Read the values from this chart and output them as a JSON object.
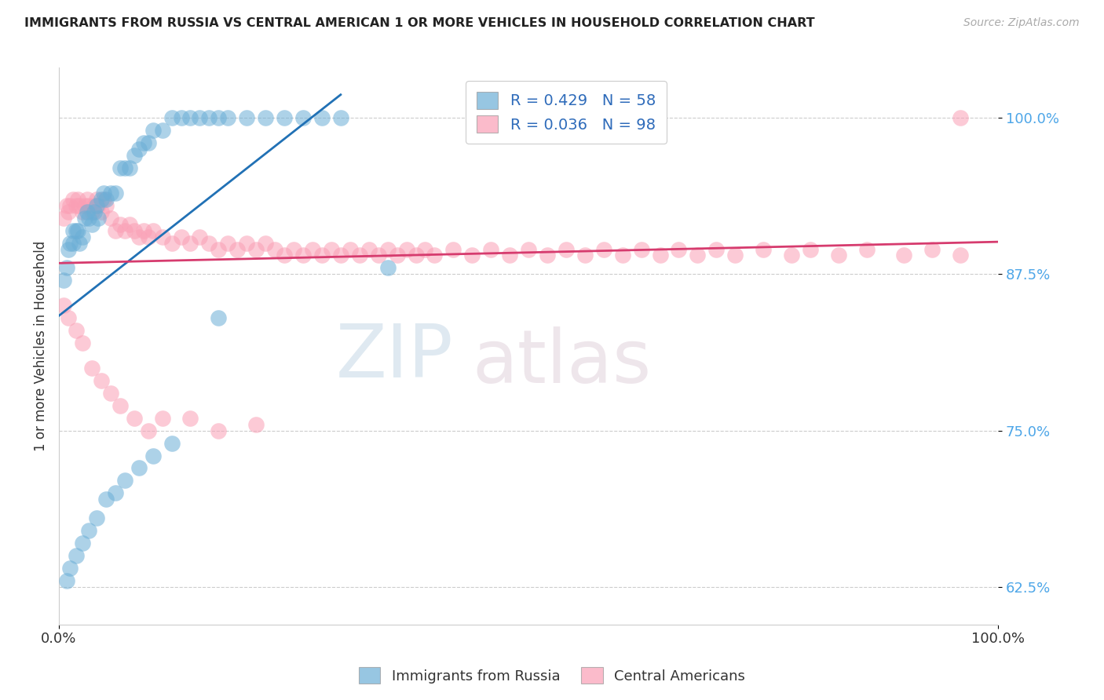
{
  "title": "IMMIGRANTS FROM RUSSIA VS CENTRAL AMERICAN 1 OR MORE VEHICLES IN HOUSEHOLD CORRELATION CHART",
  "source": "Source: ZipAtlas.com",
  "ylabel": "1 or more Vehicles in Household",
  "xlim": [
    0.0,
    1.0
  ],
  "ylim": [
    0.595,
    1.04
  ],
  "yticks": [
    0.625,
    0.75,
    0.875,
    1.0
  ],
  "ytick_labels": [
    "62.5%",
    "75.0%",
    "87.5%",
    "100.0%"
  ],
  "xticks": [
    0.0,
    1.0
  ],
  "xtick_labels": [
    "0.0%",
    "100.0%"
  ],
  "russia_color": "#6baed6",
  "central_color": "#fa9fb5",
  "russia_R": 0.429,
  "russia_N": 58,
  "central_R": 0.036,
  "central_N": 98,
  "legend_labels": [
    "Immigrants from Russia",
    "Central Americans"
  ],
  "russia_line_color": "#2171b5",
  "central_line_color": "#d63b6e",
  "russia_x": [
    0.005,
    0.008,
    0.01,
    0.012,
    0.015,
    0.015,
    0.018,
    0.02,
    0.022,
    0.025,
    0.028,
    0.03,
    0.032,
    0.035,
    0.038,
    0.04,
    0.042,
    0.045,
    0.048,
    0.05,
    0.055,
    0.06,
    0.065,
    0.07,
    0.075,
    0.08,
    0.085,
    0.09,
    0.095,
    0.1,
    0.11,
    0.12,
    0.13,
    0.14,
    0.15,
    0.16,
    0.17,
    0.18,
    0.2,
    0.22,
    0.24,
    0.26,
    0.28,
    0.3,
    0.008,
    0.012,
    0.018,
    0.025,
    0.032,
    0.04,
    0.05,
    0.06,
    0.07,
    0.085,
    0.1,
    0.12,
    0.17,
    0.35
  ],
  "russia_y": [
    0.87,
    0.88,
    0.895,
    0.9,
    0.9,
    0.91,
    0.91,
    0.91,
    0.9,
    0.905,
    0.92,
    0.925,
    0.92,
    0.915,
    0.925,
    0.93,
    0.92,
    0.935,
    0.94,
    0.935,
    0.94,
    0.94,
    0.96,
    0.96,
    0.96,
    0.97,
    0.975,
    0.98,
    0.98,
    0.99,
    0.99,
    1.0,
    1.0,
    1.0,
    1.0,
    1.0,
    1.0,
    1.0,
    1.0,
    1.0,
    1.0,
    1.0,
    1.0,
    1.0,
    0.63,
    0.64,
    0.65,
    0.66,
    0.67,
    0.68,
    0.695,
    0.7,
    0.71,
    0.72,
    0.73,
    0.74,
    0.84,
    0.88
  ],
  "central_x": [
    0.005,
    0.008,
    0.01,
    0.012,
    0.015,
    0.018,
    0.02,
    0.022,
    0.025,
    0.028,
    0.03,
    0.032,
    0.035,
    0.038,
    0.04,
    0.042,
    0.045,
    0.048,
    0.05,
    0.055,
    0.06,
    0.065,
    0.07,
    0.075,
    0.08,
    0.085,
    0.09,
    0.095,
    0.1,
    0.11,
    0.12,
    0.13,
    0.14,
    0.15,
    0.16,
    0.17,
    0.18,
    0.19,
    0.2,
    0.21,
    0.22,
    0.23,
    0.24,
    0.25,
    0.26,
    0.27,
    0.28,
    0.29,
    0.3,
    0.31,
    0.32,
    0.33,
    0.34,
    0.35,
    0.36,
    0.37,
    0.38,
    0.39,
    0.4,
    0.42,
    0.44,
    0.46,
    0.48,
    0.5,
    0.52,
    0.54,
    0.56,
    0.58,
    0.6,
    0.62,
    0.64,
    0.66,
    0.68,
    0.7,
    0.72,
    0.75,
    0.78,
    0.8,
    0.83,
    0.86,
    0.9,
    0.93,
    0.96,
    0.005,
    0.01,
    0.018,
    0.025,
    0.035,
    0.045,
    0.055,
    0.065,
    0.08,
    0.095,
    0.11,
    0.14,
    0.17,
    0.21,
    0.96
  ],
  "central_y": [
    0.92,
    0.93,
    0.925,
    0.93,
    0.935,
    0.93,
    0.935,
    0.93,
    0.925,
    0.93,
    0.935,
    0.93,
    0.925,
    0.93,
    0.935,
    0.93,
    0.925,
    0.935,
    0.93,
    0.92,
    0.91,
    0.915,
    0.91,
    0.915,
    0.91,
    0.905,
    0.91,
    0.905,
    0.91,
    0.905,
    0.9,
    0.905,
    0.9,
    0.905,
    0.9,
    0.895,
    0.9,
    0.895,
    0.9,
    0.895,
    0.9,
    0.895,
    0.89,
    0.895,
    0.89,
    0.895,
    0.89,
    0.895,
    0.89,
    0.895,
    0.89,
    0.895,
    0.89,
    0.895,
    0.89,
    0.895,
    0.89,
    0.895,
    0.89,
    0.895,
    0.89,
    0.895,
    0.89,
    0.895,
    0.89,
    0.895,
    0.89,
    0.895,
    0.89,
    0.895,
    0.89,
    0.895,
    0.89,
    0.895,
    0.89,
    0.895,
    0.89,
    0.895,
    0.89,
    0.895,
    0.89,
    0.895,
    0.89,
    0.85,
    0.84,
    0.83,
    0.82,
    0.8,
    0.79,
    0.78,
    0.77,
    0.76,
    0.75,
    0.76,
    0.76,
    0.75,
    0.755,
    1.0
  ]
}
